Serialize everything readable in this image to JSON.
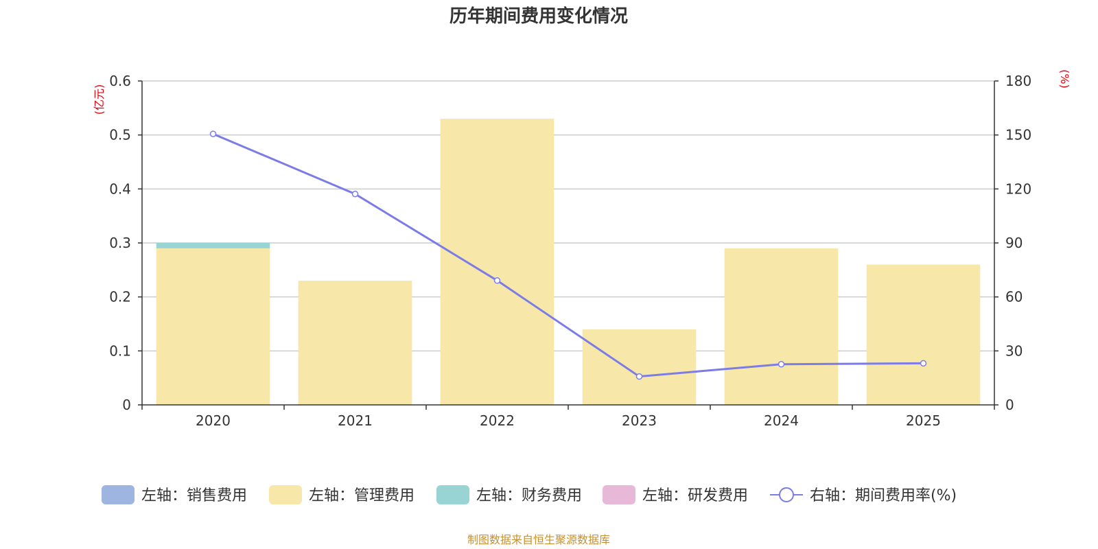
{
  "chart_data": {
    "type": "bar",
    "title": "历年期间费用变化情况",
    "categories": [
      "2020",
      "2021",
      "2022",
      "2023",
      "2024",
      "2025"
    ],
    "stacked": true,
    "series": [
      {
        "name": "左轴：销售费用",
        "axis": "left",
        "type": "bar",
        "color": "#9db5e0",
        "values": [
          0,
          0,
          0,
          0,
          0,
          0
        ]
      },
      {
        "name": "左轴：管理费用",
        "axis": "left",
        "type": "bar",
        "color": "#f7e7a8",
        "values": [
          0.29,
          0.23,
          0.53,
          0.14,
          0.29,
          0.26
        ]
      },
      {
        "name": "左轴：财务费用",
        "axis": "left",
        "type": "bar",
        "color": "#98d4d4",
        "values": [
          0.01,
          0,
          0,
          0,
          0,
          0
        ]
      },
      {
        "name": "左轴：研发费用",
        "axis": "left",
        "type": "bar",
        "color": "#e8b8d8",
        "values": [
          0,
          0,
          0,
          0,
          0,
          0
        ]
      },
      {
        "name": "右轴：期间费用率(%)",
        "axis": "right",
        "type": "line",
        "color": "#7b7ce8",
        "values": [
          150.6,
          117.2,
          69.1,
          15.8,
          22.6,
          23.1
        ]
      }
    ],
    "left_axis": {
      "unit": "(亿元)",
      "min": 0,
      "max": 0.6,
      "ticks": [
        "0",
        "0.1",
        "0.2",
        "0.3",
        "0.4",
        "0.5",
        "0.6"
      ]
    },
    "right_axis": {
      "unit": "(%)",
      "min": 0,
      "max": 180,
      "ticks": [
        "0",
        "30",
        "60",
        "90",
        "120",
        "150",
        "180"
      ]
    },
    "legend_position": "bottom",
    "grid": true
  },
  "source": "制图数据来自恒生聚源数据库"
}
